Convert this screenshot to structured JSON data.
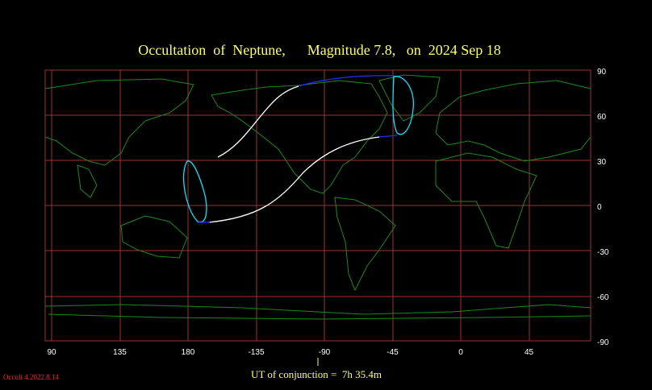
{
  "header": {
    "title": "Occultation  of  Neptune,      Magnitude 7.8,   on  2024 Sep 18"
  },
  "longitude_labels": [
    "90",
    "135",
    "180",
    "-135",
    "-90",
    "-45",
    "0",
    "45"
  ],
  "latitude_labels": [
    "90",
    "60",
    "30",
    "0",
    "-30",
    "-60",
    "-90"
  ],
  "footer": {
    "conjunction": "UT of conjunction =  7h 35.4m",
    "version": "Occult 4.2022.8.14"
  }
}
